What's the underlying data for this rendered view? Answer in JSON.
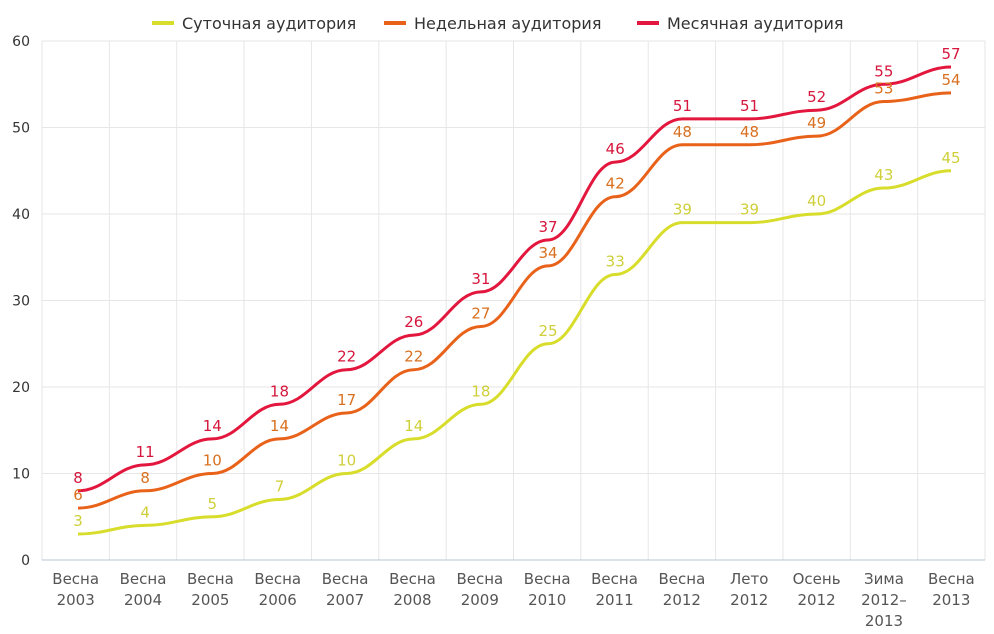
{
  "chart_data": {
    "type": "line",
    "categories": [
      [
        "Весна",
        "2003"
      ],
      [
        "Весна",
        "2004"
      ],
      [
        "Весна",
        "2005"
      ],
      [
        "Весна",
        "2006"
      ],
      [
        "Весна",
        "2007"
      ],
      [
        "Весна",
        "2008"
      ],
      [
        "Весна",
        "2009"
      ],
      [
        "Весна",
        "2010"
      ],
      [
        "Весна",
        "2011"
      ],
      [
        "Весна",
        "2012"
      ],
      [
        "Лето",
        "2012"
      ],
      [
        "Осень",
        "2012"
      ],
      [
        "Зима",
        "2012–",
        "2013"
      ],
      [
        "Весна",
        "2013"
      ]
    ],
    "series": [
      {
        "name": "Суточная аудитория",
        "color": "#d7dd2a",
        "label_color": "#cfcf3a",
        "values": [
          3,
          4,
          5,
          7,
          10,
          14,
          18,
          25,
          33,
          39,
          39,
          40,
          43,
          45
        ]
      },
      {
        "name": "Недельная аудитория",
        "color": "#e8621a",
        "label_color": "#d9701f",
        "values": [
          6,
          8,
          10,
          14,
          17,
          22,
          27,
          34,
          42,
          48,
          48,
          49,
          53,
          54
        ]
      },
      {
        "name": "Месячная аудитория",
        "color": "#e3173e",
        "label_color": "#d6163c",
        "values": [
          8,
          11,
          14,
          18,
          22,
          26,
          31,
          37,
          46,
          51,
          51,
          52,
          55,
          57
        ]
      }
    ],
    "yticks": [
      0,
      10,
      20,
      30,
      40,
      50,
      60
    ],
    "ylim": [
      0,
      60
    ],
    "grid": true,
    "legend_position": "top"
  }
}
